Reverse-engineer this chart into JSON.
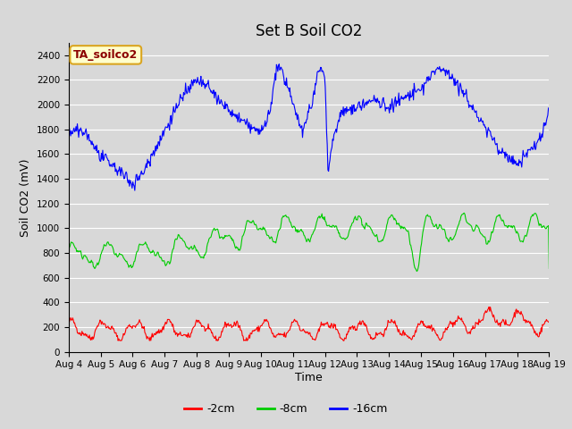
{
  "title": "Set B Soil CO2",
  "ylabel": "Soil CO2 (mV)",
  "xlabel": "Time",
  "annotation": "TA_soilco2",
  "annotation_color": "#8B0000",
  "annotation_bg": "#FFFFCC",
  "annotation_border": "#DAA520",
  "bg_color": "#D8D8D8",
  "ylim": [
    0,
    2500
  ],
  "line_colors": {
    "red": "#FF0000",
    "green": "#00CC00",
    "blue": "#0000FF"
  },
  "legend_labels": [
    "-2cm",
    "-8cm",
    "-16cm"
  ],
  "x_tick_labels": [
    "Aug 4",
    "Aug 5",
    "Aug 6",
    "Aug 7",
    "Aug 8",
    "Aug 9",
    "Aug 10",
    "Aug 11",
    "Aug 12",
    "Aug 13",
    "Aug 14",
    "Aug 15",
    "Aug 16",
    "Aug 17",
    "Aug 18",
    "Aug 19"
  ],
  "n_points": 720,
  "title_fontsize": 12,
  "axis_label_fontsize": 9,
  "tick_fontsize": 7.5
}
